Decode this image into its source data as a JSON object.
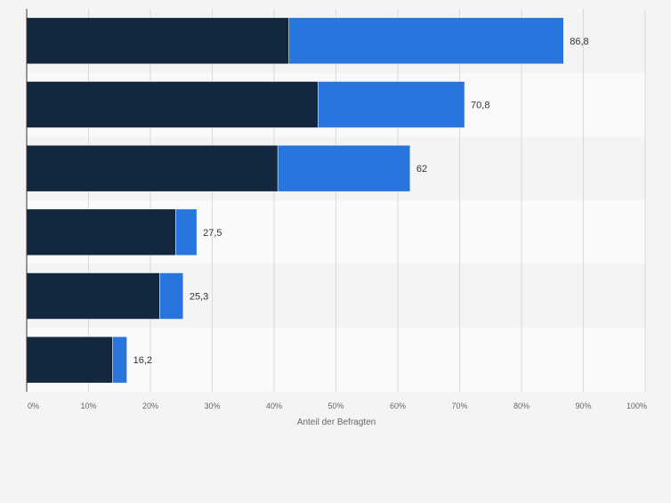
{
  "chart_data": {
    "type": "bar",
    "orientation": "horizontal",
    "stacked": true,
    "title": "",
    "xlabel": "Anteil der Befragten",
    "ylabel": "",
    "xlim": [
      0,
      100
    ],
    "ticks": [
      0,
      10,
      20,
      30,
      40,
      50,
      60,
      70,
      80,
      90,
      100
    ],
    "tick_labels": [
      "0%",
      "10%",
      "20%",
      "30%",
      "40%",
      "50%",
      "60%",
      "70%",
      "80%",
      "90%",
      "100%"
    ],
    "categories": [
      "",
      "",
      "",
      "",
      "",
      ""
    ],
    "series": [
      {
        "name": "",
        "color": "#13283f",
        "values": [
          42.4,
          47.1,
          40.6,
          24.1,
          21.5,
          13.9
        ]
      },
      {
        "name": "",
        "color": "#2876dd",
        "values": [
          44.4,
          23.7,
          21.4,
          3.4,
          3.8,
          2.3
        ]
      }
    ],
    "totals": [
      86.8,
      70.8,
      62,
      27.5,
      25.3,
      16.2
    ],
    "total_labels": [
      "86,8",
      "70,8",
      "62",
      "27,5",
      "25,3",
      "16,2"
    ],
    "grid": true,
    "legend": "none"
  },
  "colors": {
    "background": "#f4f4f4",
    "band_odd": "#f4f4f4",
    "band_even": "#fafafa",
    "grid": "#d9d9d9",
    "axis": "#333333",
    "text": "#666666",
    "value_text": "#333333"
  }
}
